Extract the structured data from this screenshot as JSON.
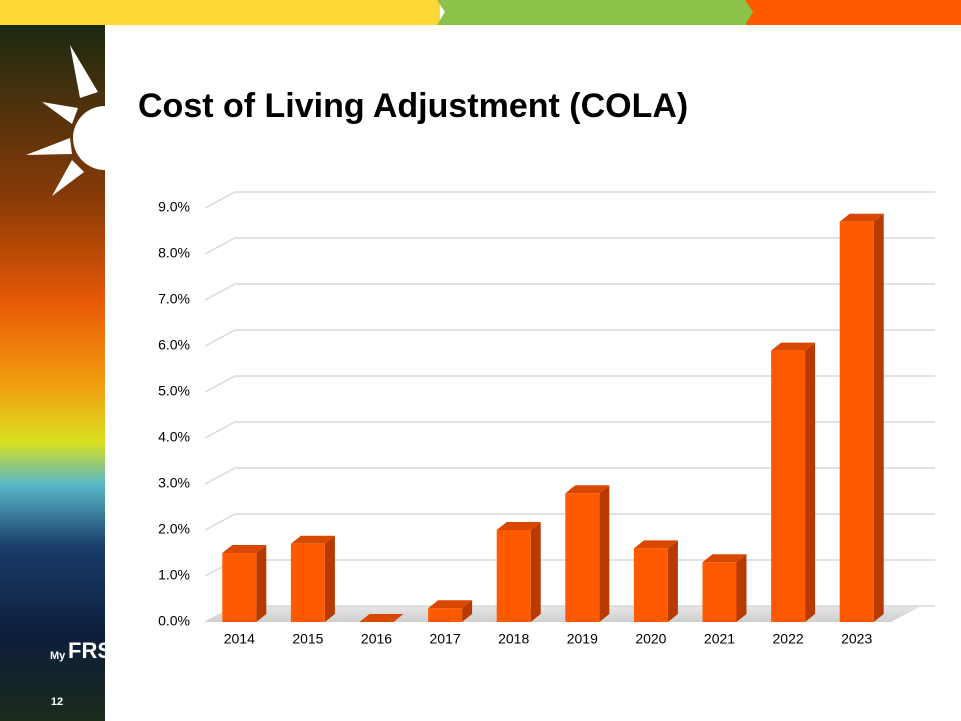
{
  "slide_title": "Cost of Living Adjustment (COLA)",
  "logo": {
    "small": "My",
    "large": "FRS"
  },
  "slide_number": "12",
  "chart_data": {
    "type": "bar3d",
    "categories": [
      "2014",
      "2015",
      "2016",
      "2017",
      "2018",
      "2019",
      "2020",
      "2021",
      "2022",
      "2023"
    ],
    "values": [
      1.5,
      1.7,
      0.0,
      0.3,
      2.0,
      2.8,
      1.6,
      1.3,
      5.9,
      8.7
    ],
    "color": "#ff5a00",
    "ylim": [
      0,
      9
    ],
    "yticks": [
      {
        "value": 0,
        "label": "0.0%"
      },
      {
        "value": 1,
        "label": "1.0%"
      },
      {
        "value": 2,
        "label": "2.0%"
      },
      {
        "value": 3,
        "label": "3.0%"
      },
      {
        "value": 4,
        "label": "4.0%"
      },
      {
        "value": 5,
        "label": "5.0%"
      },
      {
        "value": 6,
        "label": "6.0%"
      },
      {
        "value": 7,
        "label": "7.0%"
      },
      {
        "value": 8,
        "label": "8.0%"
      },
      {
        "value": 9,
        "label": "9.0%"
      }
    ],
    "grid": true
  }
}
